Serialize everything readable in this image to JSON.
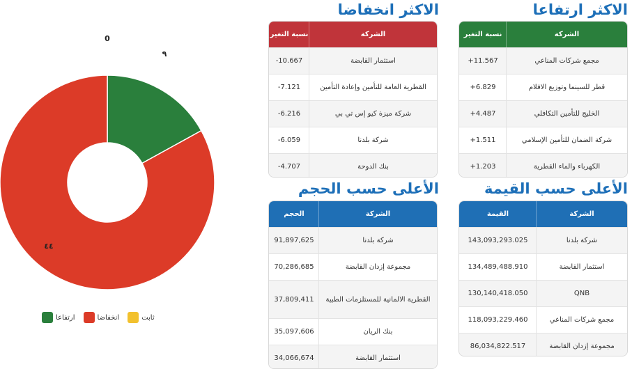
{
  "gainers": {
    "title": "الاكثر ارتفاعا",
    "col_company": "الشركة",
    "col_value": "نسبة التغير",
    "rows": [
      {
        "company": "مجمع شركات المناعي",
        "value": "+11.567"
      },
      {
        "company": "قطر للسينما وتوزيع الافلام",
        "value": "+6.829"
      },
      {
        "company": "الخليج للتأمين التكافلي",
        "value": "+4.487"
      },
      {
        "company": "شركة الضمان للتأمين الإسلامي",
        "value": "+1.511"
      },
      {
        "company": "الكهرباء والماء القطرية",
        "value": "+1.203"
      }
    ]
  },
  "losers": {
    "title": "الاكثر انخفاضا",
    "col_company": "الشركة",
    "col_value": "نسبة التغير",
    "rows": [
      {
        "company": "استثمار القابضة",
        "value": "-10.667"
      },
      {
        "company": "القطرية العامة للتأمين وإعادة التأمين",
        "value": "-7.121"
      },
      {
        "company": "شركة ميزة كيو إس تي بي",
        "value": "-6.216"
      },
      {
        "company": "شركة بلدنا",
        "value": "-6.059"
      },
      {
        "company": "بنك الدوحة",
        "value": "-4.707"
      }
    ]
  },
  "by_value": {
    "title": "الأعلى حسب القيمة",
    "col_company": "الشركة",
    "col_value": "القيمة",
    "rows": [
      {
        "company": "شركة بلدنا",
        "value": "143,093,293.025"
      },
      {
        "company": "استثمار القابضة",
        "value": "134,489,488.910"
      },
      {
        "company": "QNB",
        "value": "130,140,418.050"
      },
      {
        "company": "مجمع شركات المناعي",
        "value": "118,093,229.460"
      },
      {
        "company": "مجموعة إزدان القابضة",
        "value": "86,034,822.517"
      }
    ]
  },
  "by_volume": {
    "title": "الأعلى حسب الحجم",
    "col_company": "الشركة",
    "col_value": "الحجم",
    "rows": [
      {
        "company": "شركة بلدنا",
        "value": "91,897,625"
      },
      {
        "company": "مجموعة إزدان القابضة",
        "value": "70,286,685"
      },
      {
        "company": "القطرية الالمانية للمستلزمات الطبية",
        "value": "37,809,411"
      },
      {
        "company": "بنك الريان",
        "value": "35,097,606"
      },
      {
        "company": "استثمار القابضة",
        "value": "34,066,674"
      }
    ]
  },
  "chart_data": {
    "type": "pie",
    "donut": true,
    "categories": [
      "ارتفاعا",
      "انخفاضا",
      "ثابت"
    ],
    "values": [
      9,
      44,
      0
    ],
    "slice_labels": [
      "٩",
      "٤٤",
      "0"
    ],
    "colors": [
      "#2a7f3c",
      "#dc3b28",
      "#f2c12e"
    ],
    "legend_position": "bottom"
  },
  "colors": {
    "green_header": "#2a7f3c",
    "red_header": "#c0343a",
    "blue_header": "#1f6fb5",
    "title_blue": "#1d6fb8"
  }
}
